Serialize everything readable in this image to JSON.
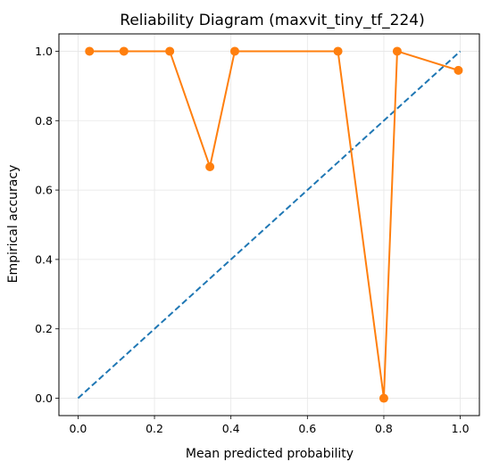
{
  "chart_data": {
    "type": "line",
    "title": "Reliability Diagram (maxvit_tiny_tf_224)",
    "xlabel": "Mean predicted probability",
    "ylabel": "Empirical accuracy",
    "xlim": [
      -0.05,
      1.05
    ],
    "ylim": [
      -0.05,
      1.05
    ],
    "x_ticks": [
      "0.0",
      "0.2",
      "0.4",
      "0.6",
      "0.8",
      "1.0"
    ],
    "y_ticks": [
      "0.0",
      "0.2",
      "0.4",
      "0.6",
      "0.8",
      "1.0"
    ],
    "grid": true,
    "legend": null,
    "series": [
      {
        "style": "solid line with circle markers",
        "color": "#ff7f0e",
        "x": [
          0.03,
          0.12,
          0.24,
          0.345,
          0.41,
          0.68,
          0.8,
          0.835,
          0.995
        ],
        "y": [
          1.0,
          1.0,
          1.0,
          0.667,
          1.0,
          1.0,
          0.0,
          1.0,
          0.945
        ]
      },
      {
        "style": "dashed line",
        "color": "#1f77b4",
        "x": [
          0.0,
          1.0
        ],
        "y": [
          0.0,
          1.0
        ]
      }
    ]
  }
}
